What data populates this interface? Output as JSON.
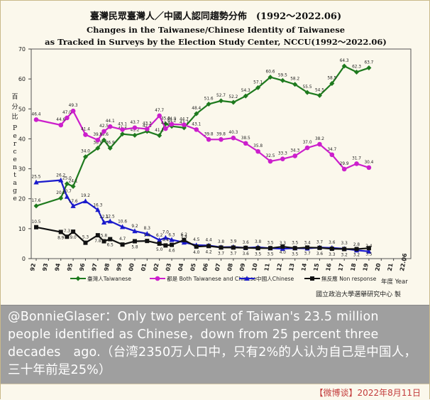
{
  "chart_data": {
    "type": "line",
    "title_zh": "臺灣民眾臺灣人／中國人認同趨勢分佈　(1992～2022.06)",
    "title_en_1": "Changes in the Taiwanese/Chinese Identity of Taiwanese",
    "title_en_2": "as Tracked in Surveys by the Election Study Center, NCCU(1992～2022.06)",
    "ylabel_zh": "百分比",
    "ylabel_en": "Percentage",
    "xlabel": "年度 Year",
    "source": "國立政治大學選舉研究中心 製",
    "ylim": [
      0,
      70
    ],
    "yticks": [
      0,
      10,
      20,
      30,
      40,
      50,
      60,
      70
    ],
    "x": [
      "92",
      "93",
      "94",
      "95",
      "96",
      "97",
      "98",
      "99",
      "00",
      "01",
      "02",
      "03",
      "04",
      "05",
      "06",
      "07",
      "08",
      "09",
      "10",
      "11",
      "12",
      "13",
      "14",
      "15",
      "16",
      "17",
      "18",
      "19",
      "20",
      "21",
      "22.06"
    ],
    "series": [
      {
        "name": "臺灣人Taiwanese",
        "color": "#1e7a1e",
        "marker": "diamond",
        "points": [
          [
            "92",
            17.6
          ],
          [
            "94",
            20.2
          ],
          [
            "94.5",
            25.0
          ],
          [
            "95",
            24.1
          ],
          [
            "96",
            34.0
          ],
          [
            "97",
            36.9
          ],
          [
            "97.5",
            39.6
          ],
          [
            "98",
            36.9
          ],
          [
            "99",
            41.6
          ],
          [
            "00",
            41.2
          ],
          [
            "01",
            42.5
          ],
          [
            "02",
            41.1
          ],
          [
            "02.5",
            45.0
          ],
          [
            "03",
            44.2
          ],
          [
            "04",
            43.7
          ],
          [
            "05",
            48.4
          ],
          [
            "06",
            51.6
          ],
          [
            "07",
            52.7
          ],
          [
            "08",
            52.2
          ],
          [
            "09",
            54.3
          ],
          [
            "10",
            57.1
          ],
          [
            "11",
            60.6
          ],
          [
            "12",
            59.5
          ],
          [
            "13",
            58.2
          ],
          [
            "14",
            55.5
          ],
          [
            "15",
            54.5
          ],
          [
            "16",
            58.5
          ],
          [
            "17",
            64.3
          ],
          [
            "18",
            62.3
          ],
          [
            "19",
            63.7
          ]
        ]
      },
      {
        "name": "都是 Both Taiwanese and Chinese",
        "color": "#cc1fcc",
        "marker": "circle",
        "points": [
          [
            "92",
            46.4
          ],
          [
            "94",
            44.6
          ],
          [
            "94.5",
            47.0
          ],
          [
            "95",
            49.3
          ],
          [
            "96",
            41.4
          ],
          [
            "97",
            39.6
          ],
          [
            "97.5",
            42.5
          ],
          [
            "98",
            44.1
          ],
          [
            "99",
            43.1
          ],
          [
            "00",
            43.7
          ],
          [
            "01",
            43.3
          ],
          [
            "02",
            47.7
          ],
          [
            "02.5",
            43.4
          ],
          [
            "03",
            44.9
          ],
          [
            "04",
            44.7
          ],
          [
            "05",
            43.1
          ],
          [
            "06",
            39.8
          ],
          [
            "07",
            39.8
          ],
          [
            "08",
            40.3
          ],
          [
            "09",
            38.5
          ],
          [
            "10",
            35.8
          ],
          [
            "11",
            32.5
          ],
          [
            "12",
            33.3
          ],
          [
            "13",
            34.3
          ],
          [
            "14",
            37.0
          ],
          [
            "15",
            38.2
          ],
          [
            "16",
            34.7
          ],
          [
            "17",
            29.9
          ],
          [
            "18",
            31.7
          ],
          [
            "19",
            30.4
          ]
        ]
      },
      {
        "name": "中國人Chinese",
        "color": "#1a1acc",
        "marker": "triangle",
        "points": [
          [
            "92",
            25.5
          ],
          [
            "94",
            26.2
          ],
          [
            "94.5",
            20.7
          ],
          [
            "95",
            17.6
          ],
          [
            "96",
            19.2
          ],
          [
            "97",
            16.3
          ],
          [
            "97.5",
            12.1
          ],
          [
            "98",
            12.5
          ],
          [
            "99",
            10.6
          ],
          [
            "00",
            9.2
          ],
          [
            "01",
            8.3
          ],
          [
            "02",
            6.2
          ],
          [
            "02.5",
            7.0
          ],
          [
            "03",
            6.3
          ],
          [
            "04",
            5.4
          ],
          [
            "05",
            4.5
          ],
          [
            "06",
            4.4
          ],
          [
            "07",
            3.8
          ],
          [
            "08",
            3.9
          ],
          [
            "09",
            3.6
          ],
          [
            "10",
            3.8
          ],
          [
            "11",
            3.5
          ],
          [
            "12",
            3.3
          ],
          [
            "13",
            3.5
          ],
          [
            "14",
            3.4
          ],
          [
            "15",
            3.7
          ],
          [
            "16",
            3.6
          ],
          [
            "17",
            3.3
          ],
          [
            "18",
            2.8
          ],
          [
            "19",
            2.4
          ]
        ]
      },
      {
        "name": "無反應 Non response",
        "color": "#111111",
        "marker": "square",
        "points": [
          [
            "92",
            10.5
          ],
          [
            "94",
            8.9
          ],
          [
            "94.5",
            7.3
          ],
          [
            "95",
            9.0
          ],
          [
            "96",
            5.3
          ],
          [
            "97",
            7.8
          ],
          [
            "97.5",
            5.8
          ],
          [
            "98",
            6.5
          ],
          [
            "99",
            4.7
          ],
          [
            "00",
            5.8
          ],
          [
            "01",
            5.9
          ],
          [
            "02",
            5.0
          ],
          [
            "02.5",
            4.4
          ],
          [
            "03",
            4.6
          ],
          [
            "04",
            6.2
          ],
          [
            "05",
            4.0
          ],
          [
            "06",
            4.2
          ],
          [
            "07",
            3.7
          ],
          [
            "08",
            3.7
          ],
          [
            "09",
            3.6
          ],
          [
            "10",
            3.5
          ],
          [
            "11",
            3.5
          ],
          [
            "12",
            4.0
          ],
          [
            "13",
            3.5
          ],
          [
            "14",
            3.7
          ],
          [
            "15",
            3.6
          ],
          [
            "16",
            3.3
          ],
          [
            "17",
            3.2
          ],
          [
            "18",
            3.2
          ],
          [
            "19",
            3.5
          ]
        ]
      }
    ]
  },
  "caption": "@BonnieGlaser：Only two percent of Taiwan's 23.5 million people identified as Chinese，down from 25 percent three decades　ago.（台湾2350万人口中，只有2%的人认为自己是中国人，三十年前是25%）",
  "footer": "【微博谈】2022年8月11日"
}
